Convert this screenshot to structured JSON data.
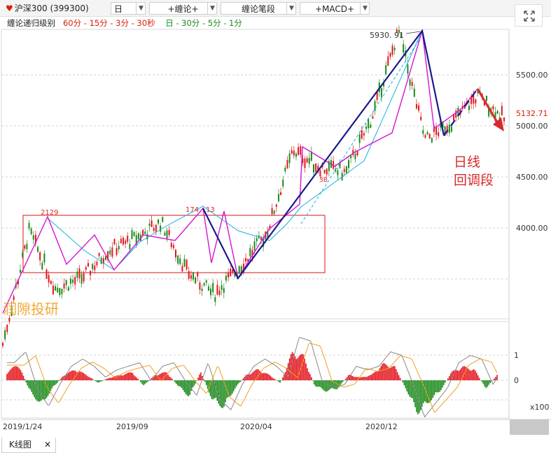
{
  "toolbar": {
    "symbol": "沪深300 (399300)",
    "period": "日",
    "indicator1": "+缠论+",
    "indicator2": "缠论笔段",
    "indicator3": "+MACD+",
    "arrow": "▼"
  },
  "levels": {
    "label": "缠论递归级别",
    "red": "60分 - 15分 - 3分 - 30秒",
    "green": "日 - 30分 - 5分 - 1分"
  },
  "colors": {
    "bull": "#e4141e",
    "bear": "#1a8a1a",
    "stroke": "#d117d1",
    "segment": "#1a1a8c",
    "zhongshu": "#1fb0e0",
    "box": "#e33b3b",
    "annot": "#d92a2a"
  },
  "annotations": {
    "peak_label": "5930. 91",
    "low_label": "2129",
    "mid_label": "174",
    "mid_label2": "13",
    "b3_label": "3B",
    "watermark": "润隙投研",
    "callout_line1": "日线",
    "callout_line2": "回调段"
  },
  "bottom": {
    "tab_label": "K线图",
    "close": "✕"
  },
  "chart_data": [
    {
      "type": "candlestick",
      "x_ticks": [
        "2019/1/24",
        "2019/09",
        "2020/04",
        "2020/12"
      ],
      "y_ticks": [
        "5500.00",
        "5000.00",
        "4500.00",
        "4000.00"
      ],
      "last_price": "5132.71",
      "ylim": [
        3330,
        5930.91
      ],
      "key_levels": {
        "high": 5930.91
      },
      "path_points": [
        {
          "date": "2019/01",
          "price": 3100
        },
        {
          "date": "2019/03",
          "price": 4120
        },
        {
          "date": "2019/05",
          "price": 3600
        },
        {
          "date": "2019/08",
          "price": 3700
        },
        {
          "date": "2019/10",
          "price": 3950
        },
        {
          "date": "2019/12",
          "price": 4050
        },
        {
          "date": "2020/01",
          "price": 4200
        },
        {
          "date": "2020/02",
          "price": 3750
        },
        {
          "date": "2020/03",
          "price": 3550
        },
        {
          "date": "2020/04",
          "price": 3800
        },
        {
          "date": "2020/06",
          "price": 4100
        },
        {
          "date": "2020/07",
          "price": 4850
        },
        {
          "date": "2020/08",
          "price": 4700
        },
        {
          "date": "2020/10",
          "price": 4650
        },
        {
          "date": "2020/12",
          "price": 5150
        },
        {
          "date": "2021/02",
          "price": 5930.91
        },
        {
          "date": "2021/03",
          "price": 4950
        },
        {
          "date": "2021/04",
          "price": 5100
        },
        {
          "date": "2021/06",
          "price": 5350
        },
        {
          "date": "2021/07",
          "price": 5132.71
        }
      ]
    },
    {
      "type": "bar",
      "name": "MACD",
      "y_ticks": [
        "1",
        "0"
      ],
      "unit": "x100",
      "histogram_shape": [
        0.3,
        0.6,
        -0.4,
        -0.9,
        -0.3,
        0.2,
        0.4,
        0.2,
        -0.1,
        0.1,
        0.2,
        0.3,
        -0.2,
        0.2,
        0.3,
        -0.2,
        -0.6,
        0.3,
        -0.7,
        -1.0,
        -0.3,
        0.2,
        0.4,
        0.2,
        -0.1,
        1.0,
        0.9,
        -0.2,
        -0.4,
        -0.3,
        0.2,
        0.1,
        0.2,
        0.6,
        0.5,
        -0.3,
        -1.2,
        -0.8,
        -0.4,
        0.3,
        0.5,
        0.4,
        -0.3,
        0.2
      ]
    }
  ]
}
